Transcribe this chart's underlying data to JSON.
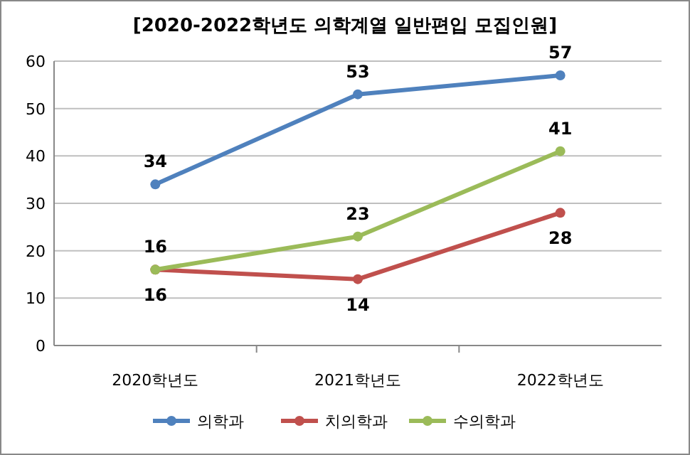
{
  "chart_data": {
    "type": "line",
    "title": "[2020-2022학년도 의학계열 일반편입 모집인원]",
    "categories": [
      "2020학년도",
      "2021학년도",
      "2022학년도"
    ],
    "series": [
      {
        "name": "의학과",
        "color": "#4f81bd",
        "values": [
          34,
          53,
          57
        ]
      },
      {
        "name": "치의학과",
        "color": "#c0504d",
        "values": [
          16,
          14,
          28
        ]
      },
      {
        "name": "수의학과",
        "color": "#9bbb59",
        "values": [
          16,
          23,
          41
        ]
      }
    ],
    "ylim": [
      0,
      60
    ],
    "yticks": [
      0,
      10,
      20,
      30,
      40,
      50,
      60
    ],
    "grid": "y",
    "legend": "bottom",
    "marker": "circle",
    "line_style": "solid",
    "data_labels": true
  }
}
